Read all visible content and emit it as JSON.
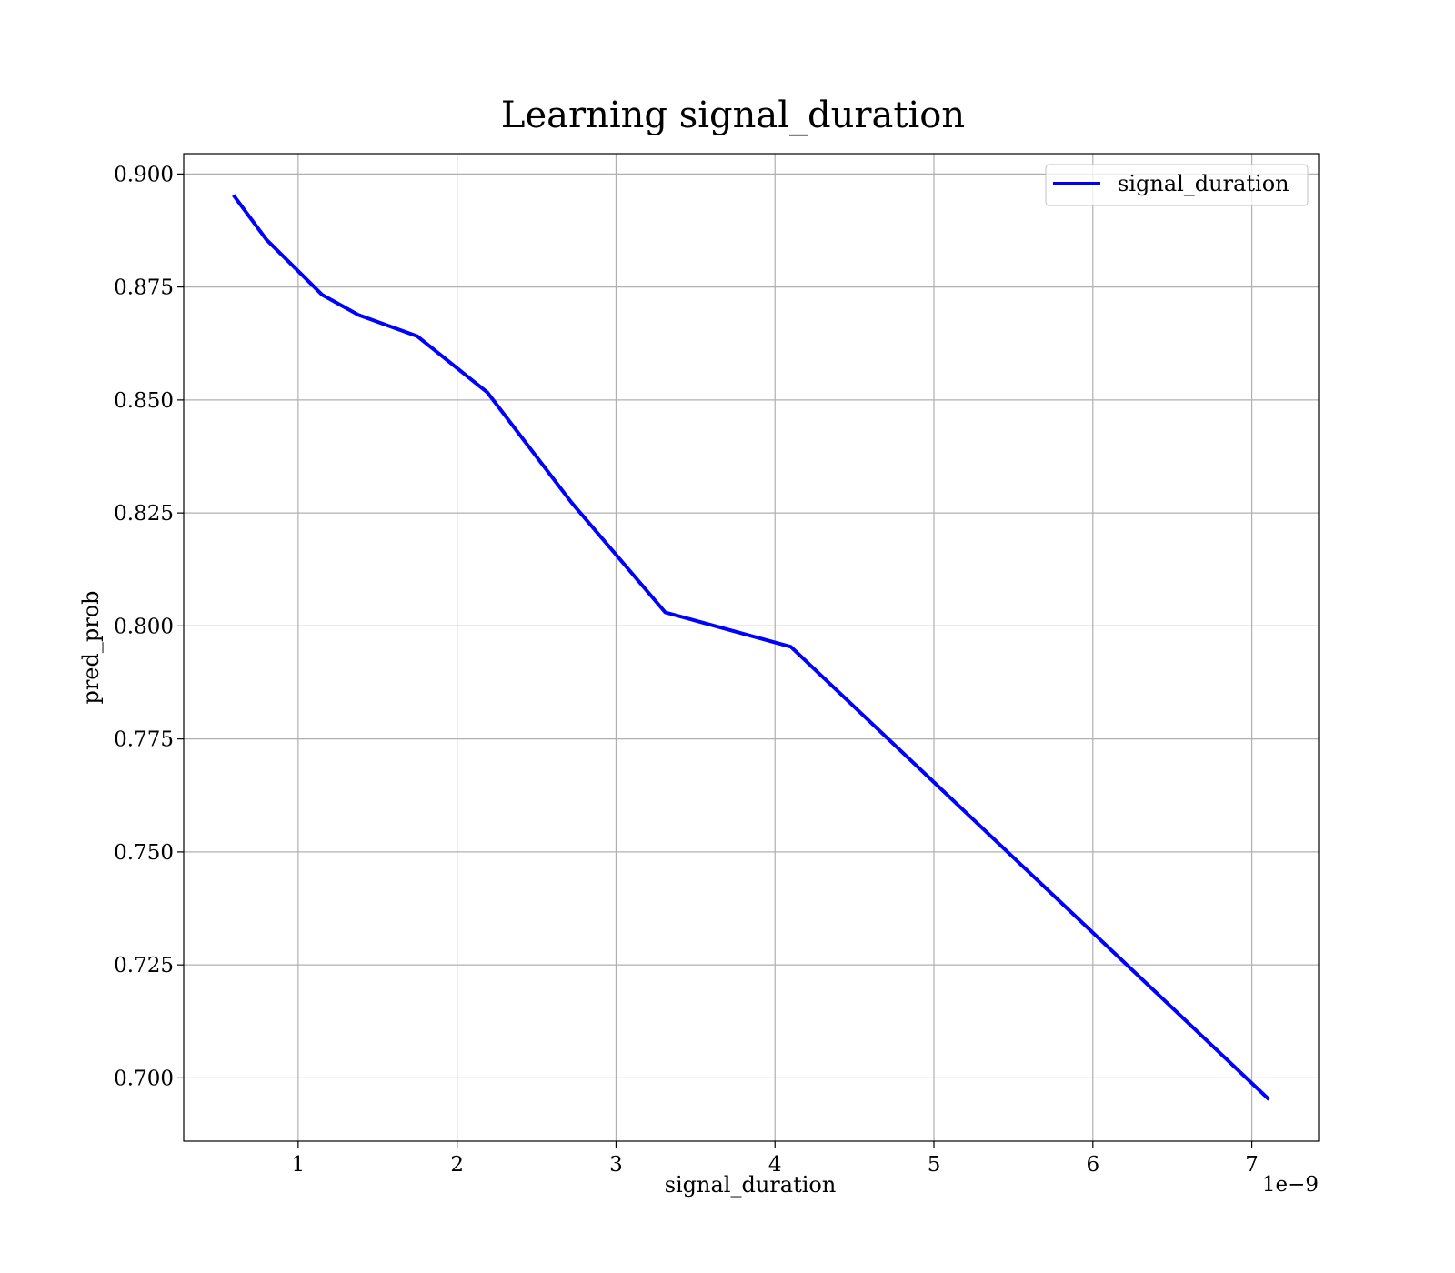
{
  "chart_data": {
    "type": "line",
    "title": "Learning signal_duration",
    "xlabel": "signal_duration",
    "ylabel": "pred_prob",
    "x_offset_text": "1e−9",
    "xlim": [
      0.28,
      7.42
    ],
    "ylim": [
      0.686,
      0.9045
    ],
    "xticks": [
      1,
      2,
      3,
      4,
      5,
      6,
      7
    ],
    "xtick_labels": [
      "1",
      "2",
      "3",
      "4",
      "5",
      "6",
      "7"
    ],
    "yticks": [
      0.7,
      0.725,
      0.75,
      0.775,
      0.8,
      0.825,
      0.85,
      0.875,
      0.9
    ],
    "ytick_labels": [
      "0.700",
      "0.725",
      "0.750",
      "0.775",
      "0.800",
      "0.825",
      "0.850",
      "0.875",
      "0.900"
    ],
    "grid": true,
    "legend_position": "top-right",
    "series": [
      {
        "name": "signal_duration",
        "color": "#0000ff",
        "x": [
          0.6,
          0.8,
          1.15,
          1.38,
          1.75,
          2.19,
          2.72,
          3.31,
          4.1,
          7.1
        ],
        "y": [
          0.895,
          0.8855,
          0.8733,
          0.8688,
          0.8641,
          0.8517,
          0.8273,
          0.803,
          0.7954,
          0.6955
        ]
      }
    ]
  }
}
